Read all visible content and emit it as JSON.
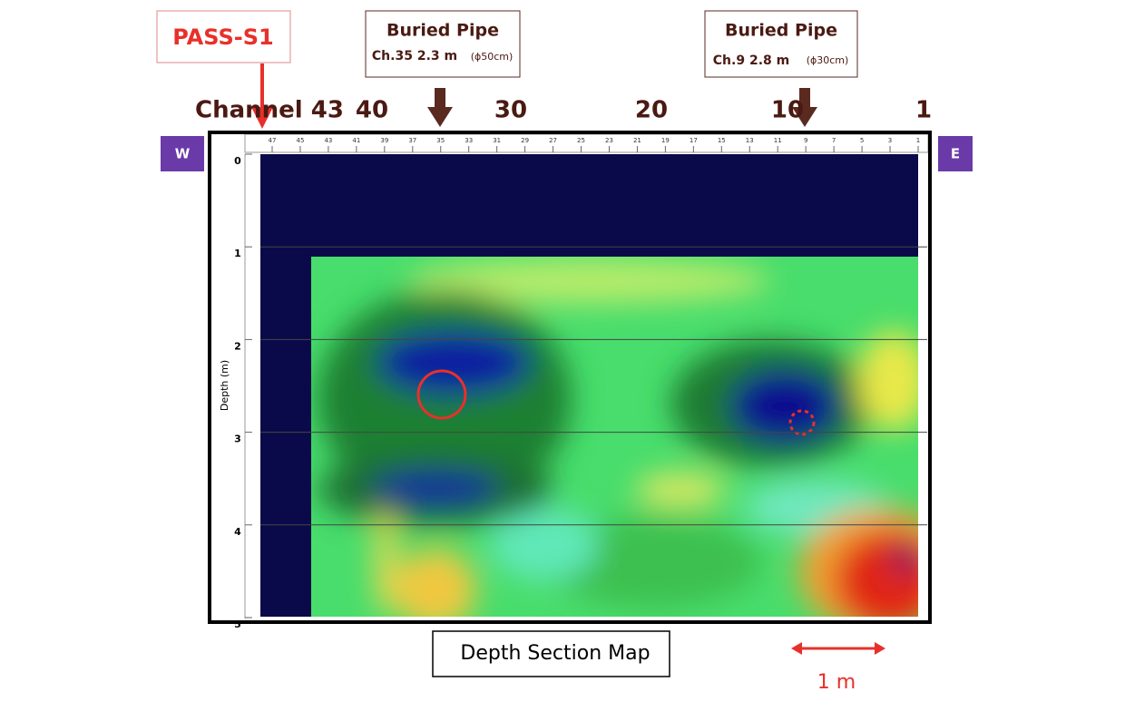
{
  "annotations": {
    "pass_label": "PASS-S1",
    "pipes": [
      {
        "title": "Buried Pipe",
        "detail": "Ch.35  2.3 m",
        "size": "(ϕ50cm)"
      },
      {
        "title": "Buried Pipe",
        "detail": "Ch.9  2.8 m",
        "size": "(ϕ30cm)"
      }
    ]
  },
  "channel_labels": [
    "Channel 43",
    "40",
    "30",
    "20",
    "10",
    "1"
  ],
  "directions": {
    "west": "W",
    "east": "E"
  },
  "ruler_ticks": [
    47,
    45,
    43,
    41,
    39,
    37,
    35,
    33,
    31,
    29,
    27,
    25,
    23,
    21,
    19,
    17,
    15,
    13,
    11,
    9,
    7,
    5,
    3,
    1
  ],
  "depth_axis": {
    "label": "Depth (m)",
    "ticks": [
      0,
      1,
      2,
      3,
      4,
      5
    ]
  },
  "caption": "Depth Section Map",
  "scale_bar": "1 m"
}
